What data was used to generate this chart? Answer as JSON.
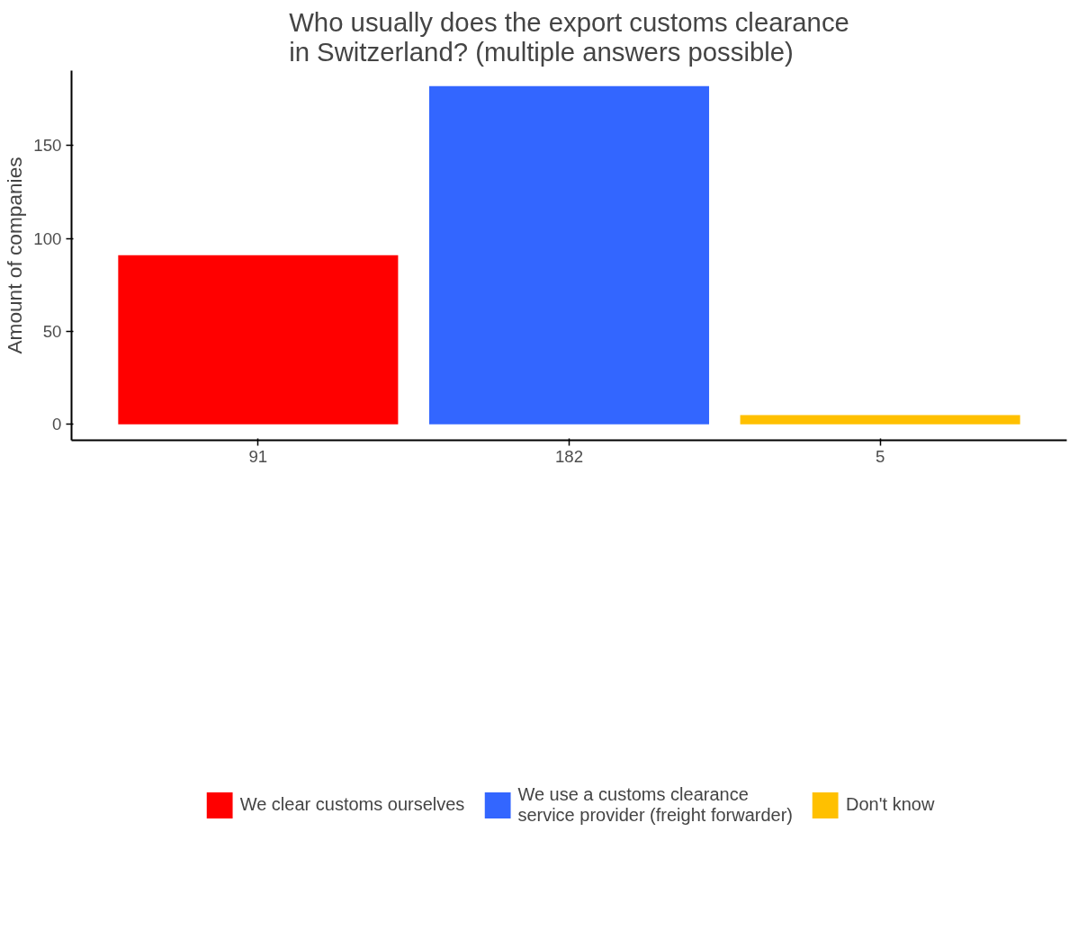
{
  "chart_data": {
    "type": "bar",
    "title": "Who usually does the export customs clearance\nin Switzerland? (multiple answers possible)",
    "ylabel": "Amount of companies",
    "categories": [
      "91",
      "182",
      "5"
    ],
    "series": [
      {
        "name": "We clear customs ourselves",
        "color": "#ff0000",
        "values": [
          91,
          null,
          null
        ]
      },
      {
        "name": "We use a customs clearance\nservice provider (freight forwarder)",
        "color": "#3366ff",
        "values": [
          null,
          182,
          null
        ]
      },
      {
        "name": "Don't know",
        "color": "#ffc000",
        "values": [
          null,
          null,
          5
        ]
      }
    ],
    "ylim": [
      -8.6,
      190.4
    ],
    "yticks": [
      0,
      50,
      100,
      150
    ],
    "grid": false,
    "legend": "bottom"
  }
}
